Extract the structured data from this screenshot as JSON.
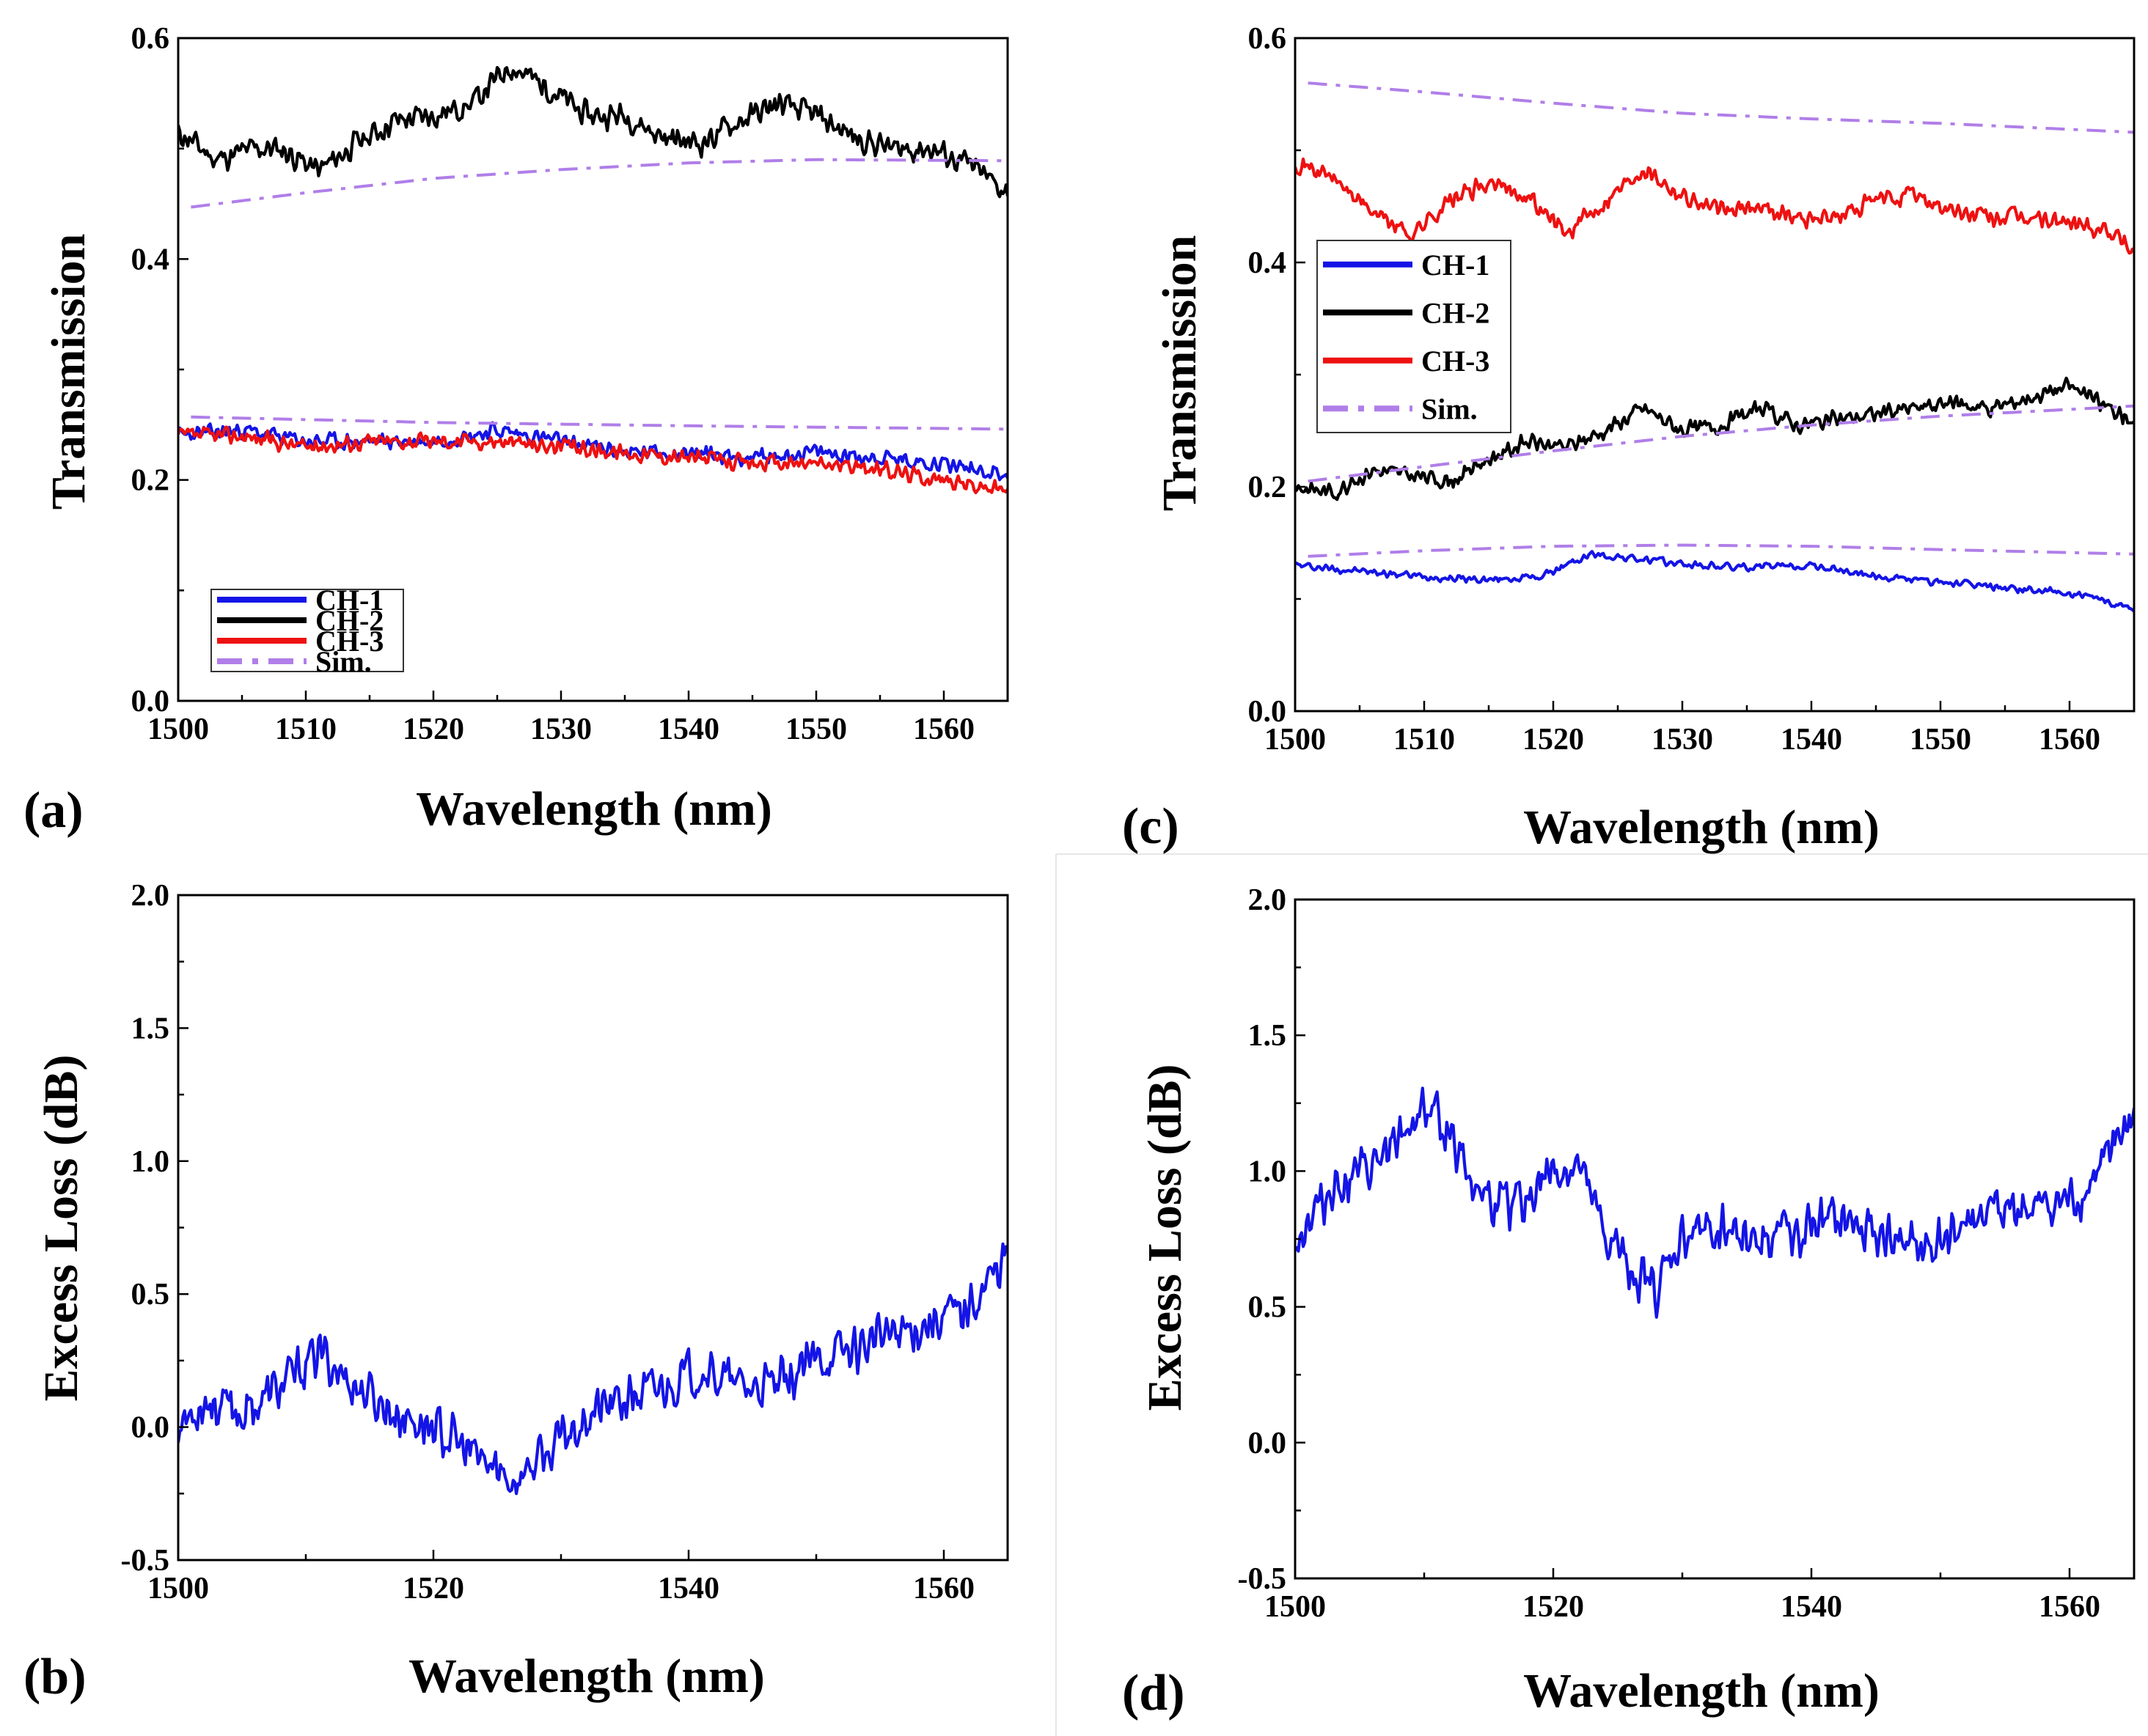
{
  "colors": {
    "ch1": "#1414e6",
    "ch2": "#000000",
    "ch3": "#ee1111",
    "sim": "#b07ee8"
  },
  "chart_data": [
    {
      "id": "a",
      "panel_label": "(a)",
      "type": "line",
      "xlabel": "Wavelength (nm)",
      "ylabel": "Transmission",
      "xlim": [
        1500,
        1565
      ],
      "ylim": [
        0.0,
        0.6
      ],
      "xticks": [
        1500,
        1510,
        1520,
        1530,
        1540,
        1550,
        1560
      ],
      "yticks": [
        "0.0",
        "0.2",
        "0.4",
        "0.6"
      ],
      "legend_position": "bottom-left",
      "legend": [
        {
          "label": "CH-1",
          "color_key": "ch1",
          "style": "solid"
        },
        {
          "label": "CH-2",
          "color_key": "ch2",
          "style": "solid"
        },
        {
          "label": "CH-3",
          "color_key": "ch3",
          "style": "solid"
        },
        {
          "label": "Sim.",
          "color_key": "sim",
          "style": "dashdot"
        }
      ],
      "series": [
        {
          "name": "CH-2",
          "color_key": "ch2",
          "style": "solid",
          "noise": 0.014,
          "seed": 11,
          "x": [
            1500,
            1503,
            1506,
            1508,
            1511,
            1514,
            1517,
            1520,
            1523,
            1526,
            1529,
            1532,
            1535,
            1538,
            1541,
            1544,
            1547,
            1550,
            1553,
            1556,
            1559,
            1562,
            1565
          ],
          "y": [
            0.515,
            0.49,
            0.5,
            0.5,
            0.48,
            0.505,
            0.525,
            0.53,
            0.54,
            0.575,
            0.555,
            0.53,
            0.53,
            0.51,
            0.505,
            0.525,
            0.54,
            0.53,
            0.51,
            0.5,
            0.5,
            0.485,
            0.46
          ]
        },
        {
          "name": "CH-1",
          "color_key": "ch1",
          "style": "solid",
          "noise": 0.009,
          "seed": 23,
          "x": [
            1500,
            1505,
            1510,
            1515,
            1520,
            1525,
            1530,
            1535,
            1540,
            1545,
            1550,
            1555,
            1560,
            1565
          ],
          "y": [
            0.24,
            0.245,
            0.235,
            0.235,
            0.235,
            0.245,
            0.235,
            0.225,
            0.225,
            0.22,
            0.225,
            0.22,
            0.215,
            0.205
          ]
        },
        {
          "name": "CH-3",
          "color_key": "ch3",
          "style": "solid",
          "noise": 0.009,
          "seed": 37,
          "x": [
            1500,
            1505,
            1510,
            1515,
            1520,
            1525,
            1530,
            1535,
            1540,
            1545,
            1550,
            1555,
            1560,
            1565
          ],
          "y": [
            0.24,
            0.24,
            0.23,
            0.235,
            0.235,
            0.235,
            0.23,
            0.225,
            0.22,
            0.215,
            0.215,
            0.21,
            0.2,
            0.19
          ]
        },
        {
          "name": "Sim. (CH-2)",
          "color_key": "sim",
          "style": "dashdot",
          "noise": 0,
          "seed": 0,
          "x": [
            1501,
            1510,
            1520,
            1530,
            1540,
            1550,
            1565
          ],
          "y": [
            0.447,
            0.46,
            0.473,
            0.481,
            0.487,
            0.49,
            0.489
          ]
        },
        {
          "name": "Sim. (CH-1/CH-3)",
          "color_key": "sim",
          "style": "dashdot",
          "noise": 0,
          "seed": 0,
          "x": [
            1501,
            1520,
            1540,
            1565
          ],
          "y": [
            0.257,
            0.252,
            0.249,
            0.246
          ]
        }
      ]
    },
    {
      "id": "b",
      "panel_label": "(b)",
      "type": "line",
      "xlabel": "Wavelength (nm)",
      "ylabel": "Excess Loss (dB)",
      "xlim": [
        1500,
        1565
      ],
      "ylim": [
        -0.5,
        2.0
      ],
      "xticks": [
        1500,
        1520,
        1540,
        1560
      ],
      "yticks": [
        "-0.5",
        "0.0",
        "0.5",
        "1.0",
        "1.5",
        "2.0"
      ],
      "series": [
        {
          "name": "Excess Loss",
          "color_key": "ch1",
          "style": "solid",
          "noise": 0.11,
          "seed": 53,
          "x": [
            1500,
            1502,
            1505,
            1508,
            1511,
            1514,
            1517,
            1520,
            1523,
            1526,
            1529,
            1532,
            1535,
            1538,
            1541,
            1544,
            1547,
            1550,
            1553,
            1556,
            1559,
            1562,
            1565
          ],
          "y": [
            0.0,
            0.1,
            0.05,
            0.15,
            0.28,
            0.15,
            0.05,
            0.0,
            -0.1,
            -0.2,
            -0.1,
            0.05,
            0.1,
            0.15,
            0.22,
            0.15,
            0.15,
            0.25,
            0.3,
            0.35,
            0.4,
            0.45,
            0.65
          ]
        }
      ]
    },
    {
      "id": "c",
      "panel_label": "(c)",
      "type": "line",
      "xlabel": "Wavelength (nm)",
      "ylabel": "Transmission",
      "xlim": [
        1500,
        1565
      ],
      "ylim": [
        0.0,
        0.6
      ],
      "xticks": [
        1500,
        1510,
        1520,
        1530,
        1540,
        1550,
        1560
      ],
      "yticks": [
        "0.0",
        "0.2",
        "0.4",
        "0.6"
      ],
      "legend_position": "center-left",
      "legend": [
        {
          "label": "CH-1",
          "color_key": "ch1",
          "style": "solid"
        },
        {
          "label": "CH-2",
          "color_key": "ch2",
          "style": "solid"
        },
        {
          "label": "CH-3",
          "color_key": "ch3",
          "style": "solid"
        },
        {
          "label": "Sim.",
          "color_key": "sim",
          "style": "dashdot"
        }
      ],
      "series": [
        {
          "name": "Sim. (CH-3)",
          "color_key": "sim",
          "style": "dashdot",
          "noise": 0,
          "seed": 0,
          "x": [
            1501,
            1510,
            1520,
            1530,
            1540,
            1550,
            1565
          ],
          "y": [
            0.56,
            0.552,
            0.542,
            0.533,
            0.528,
            0.524,
            0.516
          ]
        },
        {
          "name": "CH-3",
          "color_key": "ch3",
          "style": "solid",
          "noise": 0.01,
          "seed": 71,
          "x": [
            1500,
            1503,
            1506,
            1509,
            1512,
            1515,
            1518,
            1521,
            1524,
            1527,
            1530,
            1533,
            1536,
            1539,
            1542,
            1545,
            1548,
            1551,
            1554,
            1557,
            1560,
            1563,
            1565
          ],
          "y": [
            0.49,
            0.475,
            0.445,
            0.425,
            0.455,
            0.47,
            0.46,
            0.425,
            0.455,
            0.485,
            0.46,
            0.445,
            0.45,
            0.44,
            0.44,
            0.455,
            0.46,
            0.445,
            0.44,
            0.44,
            0.435,
            0.43,
            0.41
          ]
        },
        {
          "name": "CH-2",
          "color_key": "ch2",
          "style": "solid",
          "noise": 0.009,
          "seed": 83,
          "x": [
            1500,
            1503,
            1506,
            1509,
            1512,
            1515,
            1518,
            1521,
            1524,
            1527,
            1530,
            1533,
            1536,
            1539,
            1542,
            1545,
            1548,
            1551,
            1554,
            1557,
            1560,
            1563,
            1565
          ],
          "y": [
            0.2,
            0.195,
            0.215,
            0.21,
            0.205,
            0.225,
            0.24,
            0.235,
            0.25,
            0.27,
            0.25,
            0.255,
            0.27,
            0.255,
            0.26,
            0.265,
            0.27,
            0.275,
            0.27,
            0.28,
            0.29,
            0.27,
            0.26
          ]
        },
        {
          "name": "Sim. (CH-2)",
          "color_key": "sim",
          "style": "dashdot",
          "noise": 0,
          "seed": 0,
          "x": [
            1501,
            1510,
            1520,
            1530,
            1540,
            1550,
            1565
          ],
          "y": [
            0.205,
            0.218,
            0.232,
            0.245,
            0.255,
            0.263,
            0.272
          ]
        },
        {
          "name": "Sim. (CH-1)",
          "color_key": "sim",
          "style": "dashdot",
          "noise": 0,
          "seed": 0,
          "x": [
            1501,
            1510,
            1520,
            1530,
            1540,
            1550,
            1565
          ],
          "y": [
            0.138,
            0.143,
            0.147,
            0.148,
            0.147,
            0.144,
            0.14
          ]
        },
        {
          "name": "CH-1",
          "color_key": "ch1",
          "style": "solid",
          "noise": 0.004,
          "seed": 97,
          "x": [
            1500,
            1505,
            1510,
            1515,
            1519,
            1523,
            1527,
            1531,
            1535,
            1540,
            1545,
            1550,
            1555,
            1560,
            1565
          ],
          "y": [
            0.13,
            0.125,
            0.12,
            0.117,
            0.12,
            0.14,
            0.135,
            0.13,
            0.128,
            0.13,
            0.12,
            0.115,
            0.11,
            0.105,
            0.092
          ]
        }
      ]
    },
    {
      "id": "d",
      "panel_label": "(d)",
      "type": "line",
      "xlabel": "Wavelength (nm)",
      "ylabel": "Excess Loss (dB)",
      "xlim": [
        1500,
        1565
      ],
      "ylim": [
        -0.5,
        2.0
      ],
      "xticks": [
        1500,
        1520,
        1540,
        1560
      ],
      "yticks": [
        "-0.5",
        "0.0",
        "0.5",
        "1.0",
        "1.5",
        "2.0"
      ],
      "series": [
        {
          "name": "Excess Loss",
          "color_key": "ch1",
          "style": "solid",
          "noise": 0.11,
          "seed": 113,
          "x": [
            1500,
            1503,
            1506,
            1508,
            1510,
            1512,
            1514,
            1516,
            1518,
            1520,
            1522,
            1524,
            1526,
            1528,
            1530,
            1533,
            1536,
            1540,
            1543,
            1546,
            1549,
            1552,
            1555,
            1558,
            1561,
            1563,
            1565
          ],
          "y": [
            0.75,
            0.95,
            1.0,
            1.1,
            1.25,
            1.15,
            0.95,
            0.85,
            0.9,
            1.0,
            1.0,
            0.75,
            0.65,
            0.55,
            0.75,
            0.8,
            0.75,
            0.8,
            0.8,
            0.75,
            0.7,
            0.8,
            0.85,
            0.85,
            0.9,
            1.05,
            1.2
          ]
        }
      ]
    }
  ]
}
